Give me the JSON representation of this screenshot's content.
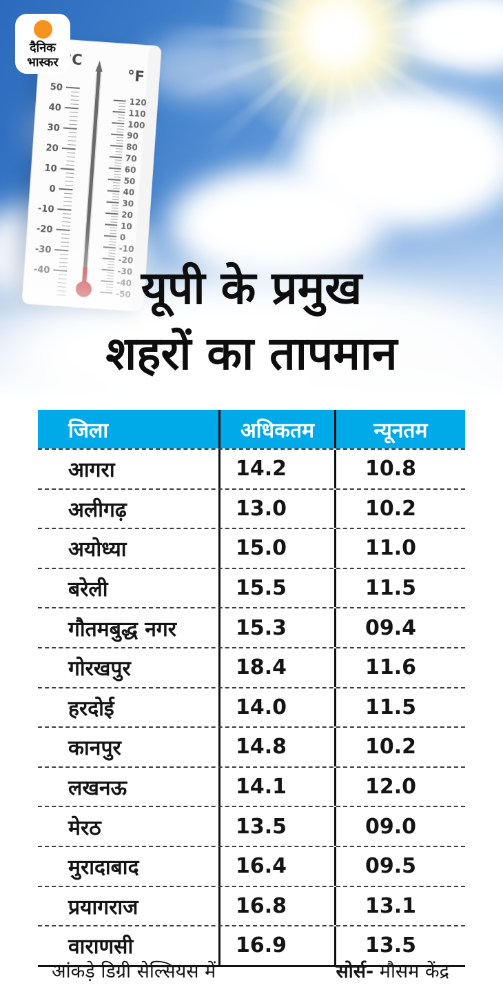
{
  "colors": {
    "header_blue": "#00A9E8",
    "sky_blue": "#3C7CC9",
    "logo_orange": "#F6921E",
    "mercury_red": "#C1272D"
  },
  "logo": {
    "line1": "दैनिक",
    "line2": "भास्कर"
  },
  "title": {
    "line1": "यूपी के प्रमुख",
    "line2": "शहरों का तापमान"
  },
  "table": {
    "headers": {
      "district": "जिला",
      "max": "अधिकतम",
      "min": "न्यूनतम"
    },
    "rows": [
      {
        "district": "आगरा",
        "max": "14.2",
        "min": "10.8"
      },
      {
        "district": "अलीगढ़",
        "max": "13.0",
        "min": "10.2"
      },
      {
        "district": "अयोध्या",
        "max": "15.0",
        "min": "11.0"
      },
      {
        "district": "बरेली",
        "max": "15.5",
        "min": "11.5"
      },
      {
        "district": "गौतमबुद्ध नगर",
        "max": "15.3",
        "min": "09.4"
      },
      {
        "district": "गोरखपुर",
        "max": "18.4",
        "min": "11.6"
      },
      {
        "district": "हरदोई",
        "max": "14.0",
        "min": "11.5"
      },
      {
        "district": "कानपुर",
        "max": "14.8",
        "min": "10.2"
      },
      {
        "district": "लखनऊ",
        "max": "14.1",
        "min": "12.0"
      },
      {
        "district": "मेरठ",
        "max": "13.5",
        "min": "09.0"
      },
      {
        "district": "मुरादाबाद",
        "max": "16.4",
        "min": "09.5"
      },
      {
        "district": "प्रयागराज",
        "max": "16.8",
        "min": "13.1"
      },
      {
        "district": "वाराणसी",
        "max": "16.9",
        "min": "13.5"
      }
    ]
  },
  "footer": {
    "note": "आंकड़े डिग्री सेल्सियस में",
    "source_label": "सोर्स-",
    "source_value": "मौसम केंद्र"
  },
  "thermometer": {
    "celsius_symbol": "°C",
    "fahrenheit_symbol": "°F",
    "celsius_labels": [
      "50",
      "40",
      "30",
      "20",
      "10",
      "0",
      "-10",
      "-20",
      "-30",
      "-40"
    ],
    "fahrenheit_labels": [
      "120",
      "110",
      "100",
      "90",
      "80",
      "70",
      "60",
      "50",
      "40",
      "30",
      "20",
      "10",
      "0",
      "-10",
      "-20",
      "-30",
      "-40",
      "-50"
    ]
  },
  "chart_data": {
    "type": "table",
    "title": "यूपी के प्रमुख शहरों का तापमान",
    "columns": [
      "जिला",
      "अधिकतम",
      "न्यूनतम"
    ],
    "rows": [
      [
        "आगरा",
        14.2,
        10.8
      ],
      [
        "अलीगढ़",
        13.0,
        10.2
      ],
      [
        "अयोध्या",
        15.0,
        11.0
      ],
      [
        "बरेली",
        15.5,
        11.5
      ],
      [
        "गौतमबुद्ध नगर",
        15.3,
        9.4
      ],
      [
        "गोरखपुर",
        18.4,
        11.6
      ],
      [
        "हरदोई",
        14.0,
        11.5
      ],
      [
        "कानपुर",
        14.8,
        10.2
      ],
      [
        "लखनऊ",
        14.1,
        12.0
      ],
      [
        "मेरठ",
        13.5,
        9.0
      ],
      [
        "मुरादाबाद",
        16.4,
        9.5
      ],
      [
        "प्रयागराज",
        16.8,
        13.1
      ],
      [
        "वाराणसी",
        16.9,
        13.5
      ]
    ],
    "unit_note": "आंकड़े डिग्री सेल्सियस में",
    "source": "सोर्स- मौसम केंद्र"
  }
}
